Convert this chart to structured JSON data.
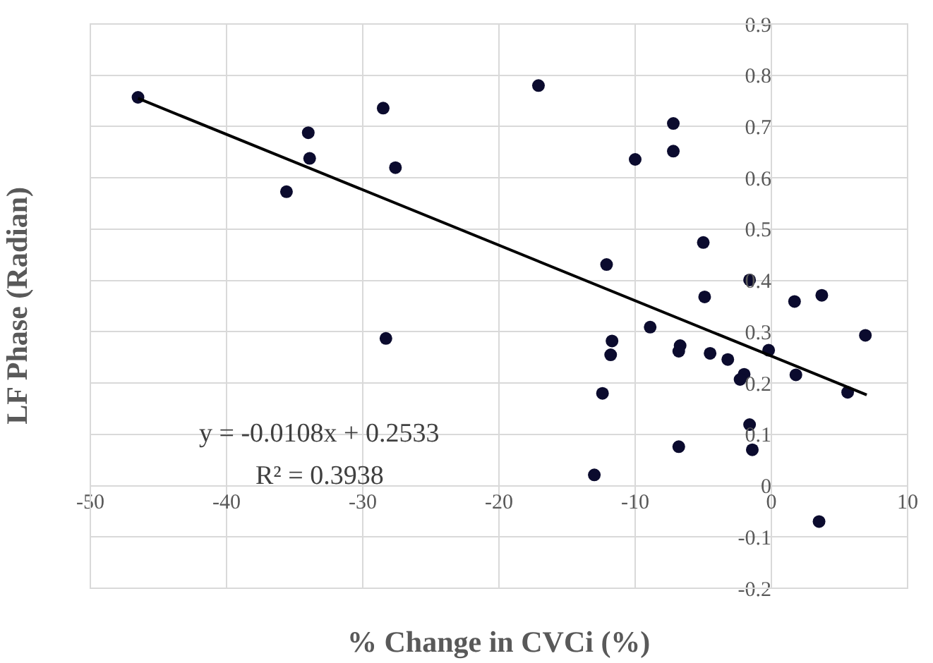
{
  "chart_data": {
    "type": "scatter",
    "xlabel": "% Change in CVCi (%)",
    "ylabel": "LF Phase (Radian)",
    "xlim": [
      -50,
      10
    ],
    "xticks": [
      -50,
      -40,
      -30,
      -20,
      -10,
      0,
      10
    ],
    "ylim": [
      -0.2,
      0.9
    ],
    "yticks": [
      -0.2,
      -0.1,
      0,
      0.1,
      0.2,
      0.3,
      0.4,
      0.5,
      0.6,
      0.7,
      0.8,
      0.9
    ],
    "grid": true,
    "marker": "circle",
    "series": [
      {
        "color": "#0b0b2e",
        "x": [
          -46.5,
          -34.0,
          -33.9,
          -35.6,
          -28.5,
          -27.6,
          -28.3,
          -17.1,
          -7.2,
          -7.2,
          -10.0,
          -5.0,
          -12.1,
          -1.6,
          -4.9,
          1.7,
          3.7,
          6.9,
          -8.9,
          -11.7,
          -11.8,
          -6.7,
          -6.8,
          -4.5,
          -3.2,
          -0.2,
          -2.0,
          -2.3,
          1.8,
          5.6,
          -12.4,
          -1.6,
          -1.4,
          -6.8,
          -13.0,
          3.5
        ],
        "values": [
          0.757,
          0.688,
          0.638,
          0.573,
          0.736,
          0.62,
          0.287,
          0.78,
          0.706,
          0.652,
          0.636,
          0.474,
          0.431,
          0.401,
          0.368,
          0.359,
          0.371,
          0.293,
          0.309,
          0.282,
          0.255,
          0.273,
          0.262,
          0.258,
          0.246,
          0.264,
          0.217,
          0.207,
          0.216,
          0.182,
          0.18,
          0.119,
          0.07,
          0.076,
          0.021,
          -0.07
        ]
      },
      {
        "type": "line",
        "color": "#000000",
        "x": [
          -46.5,
          7.0
        ],
        "values": [
          0.755,
          0.177
        ],
        "marker": "none",
        "line_style": "solid"
      }
    ],
    "annotations": [
      "y = -0.0108x + 0.2533",
      "R² = 0.3938"
    ]
  }
}
